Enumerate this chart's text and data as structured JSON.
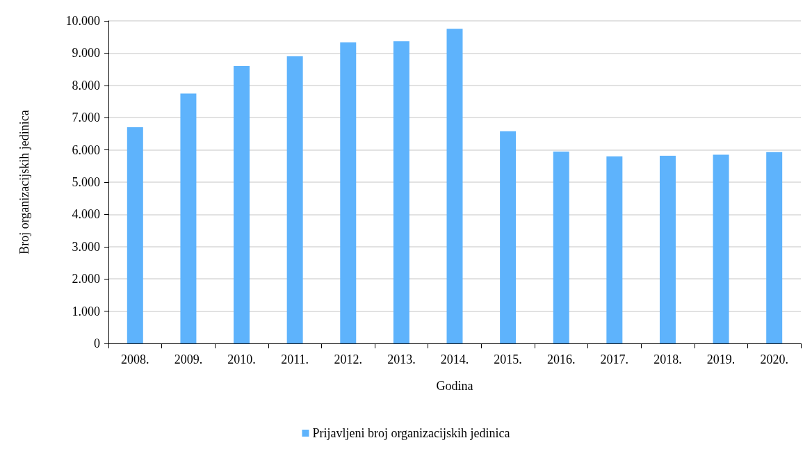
{
  "chart_data": {
    "type": "bar",
    "xlabel": "Godina",
    "ylabel": "Broj organizacijskih jedinica",
    "categories": [
      "2008.",
      "2009.",
      "2010.",
      "2011.",
      "2012.",
      "2013.",
      "2014.",
      "2015.",
      "2016.",
      "2017.",
      "2018.",
      "2019.",
      "2020."
    ],
    "series": [
      {
        "name": "Prijavljeni broj organizacijskih jedinica",
        "color": "#5eb3fc",
        "values": [
          6700,
          7750,
          8600,
          8900,
          9330,
          9370,
          9750,
          6580,
          5950,
          5800,
          5820,
          5850,
          5930
        ]
      }
    ],
    "ylim": [
      0,
      10000
    ],
    "yticks": [
      0,
      {
        "value": 1000,
        "label": "1.000"
      },
      {
        "value": 2000,
        "label": "2.000"
      },
      {
        "value": 3000,
        "label": "3.000"
      },
      {
        "value": 4000,
        "label": "4.000"
      },
      {
        "value": 5000,
        "label": "5.000"
      },
      {
        "value": 6000,
        "label": "6.000"
      },
      {
        "value": 7000,
        "label": "7.000"
      },
      {
        "value": 8000,
        "label": "8.000"
      },
      {
        "value": 9000,
        "label": "9.000"
      },
      {
        "value": 10000,
        "label": "10.000"
      }
    ],
    "grid": "y",
    "legend": "bottom"
  }
}
